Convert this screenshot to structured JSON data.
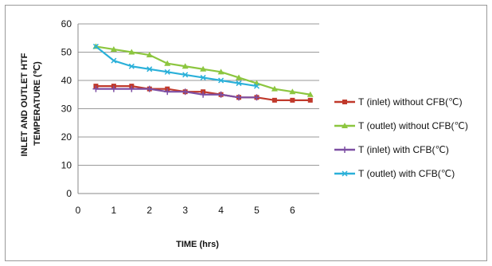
{
  "chart_data": {
    "type": "line",
    "title": "",
    "xlabel": "TIME (hrs)",
    "ylabel_lines": [
      "INLET AND OUTLET HTF",
      "TEMPERATURE (℃)"
    ],
    "xlim": [
      0,
      6.75
    ],
    "ylim": [
      0,
      60
    ],
    "x_ticks": [
      0,
      1,
      2,
      3,
      4,
      5,
      6
    ],
    "y_ticks": [
      0,
      10,
      20,
      30,
      40,
      50,
      60
    ],
    "grid": true,
    "legend_position": "right",
    "series": [
      {
        "name": "T (inlet) without CFB(℃)",
        "color": "#c0392b",
        "marker": "square",
        "x": [
          0.5,
          1,
          1.5,
          2,
          2.5,
          3,
          3.5,
          4,
          4.5,
          5,
          5.5,
          6,
          6.5
        ],
        "values": [
          38,
          38,
          38,
          37,
          37,
          36,
          36,
          35,
          34,
          34,
          33,
          33,
          33
        ]
      },
      {
        "name": "T (outlet) without CFB(℃)",
        "color": "#8cc63f",
        "marker": "triangle",
        "x": [
          0.5,
          1,
          1.5,
          2,
          2.5,
          3,
          3.5,
          4,
          4.5,
          5,
          5.5,
          6,
          6.5
        ],
        "values": [
          52,
          51,
          50,
          49,
          46,
          45,
          44,
          43,
          41,
          39,
          37,
          36,
          35
        ]
      },
      {
        "name": "T (inlet) with CFB(℃)",
        "color": "#7d4fa3",
        "marker": "cross",
        "x": [
          0.5,
          1,
          1.5,
          2,
          2.5,
          3,
          3.5,
          4,
          4.5,
          5
        ],
        "values": [
          37,
          37,
          37,
          37,
          36,
          36,
          35,
          35,
          34,
          34
        ]
      },
      {
        "name": "T (outlet) with CFB(℃)",
        "color": "#2ab0d9",
        "marker": "x",
        "x": [
          0.5,
          1,
          1.5,
          2,
          2.5,
          3,
          3.5,
          4,
          4.5,
          5
        ],
        "values": [
          52,
          47,
          45,
          44,
          43,
          42,
          41,
          40,
          39,
          38
        ]
      }
    ]
  }
}
